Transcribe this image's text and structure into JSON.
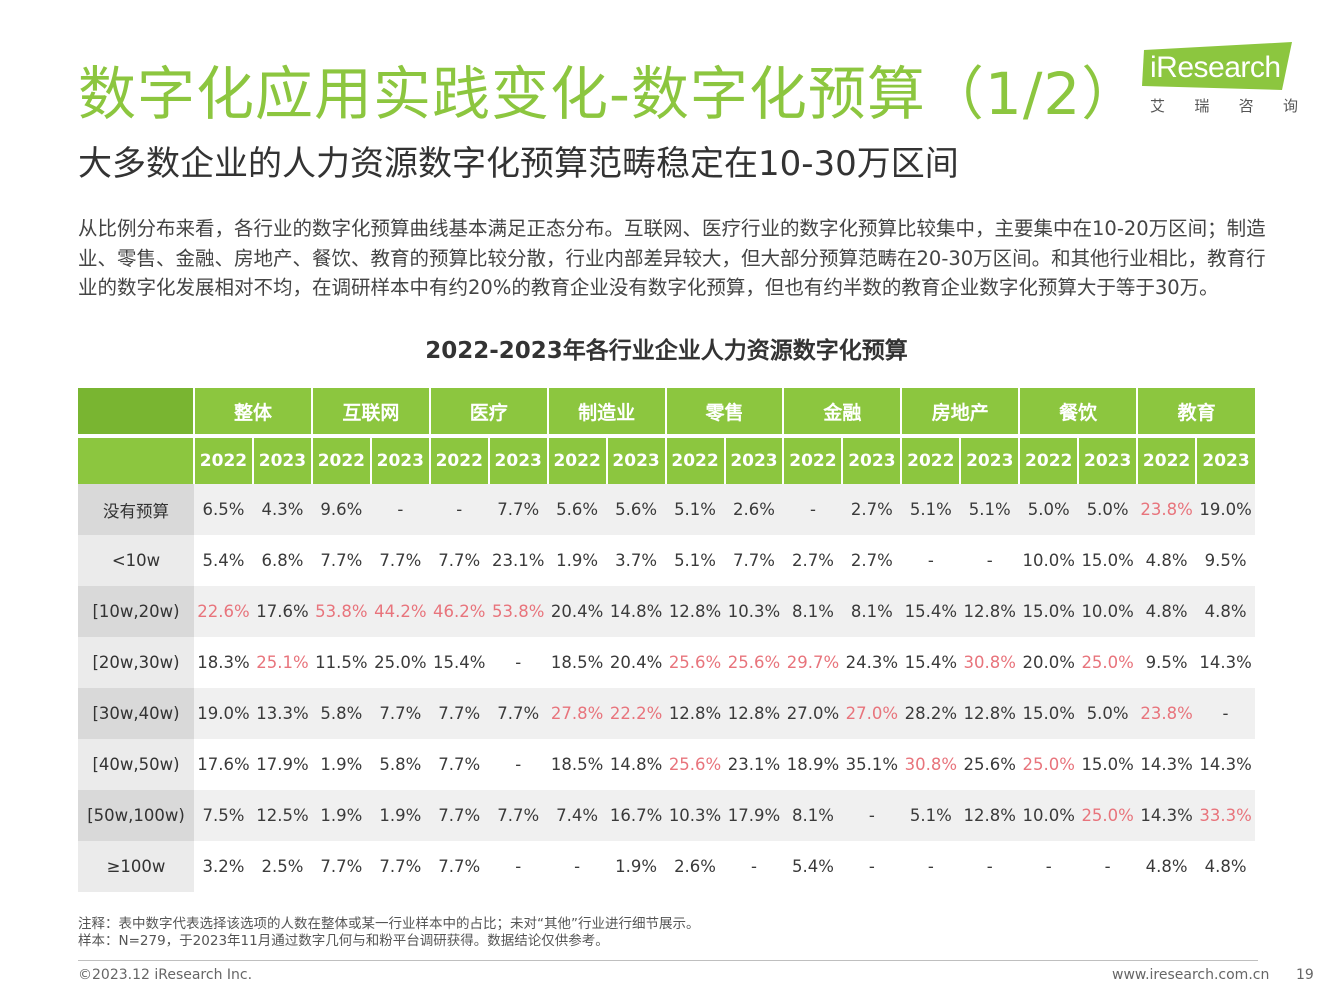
{
  "header": {
    "title": "数字化应用实践变化-数字化预算（1/2）",
    "subtitle": "大多数企业的人力资源数字化预算范畴稳定在10-30万区间"
  },
  "logo": {
    "brand": "iResearch",
    "brand_cn": [
      "艾",
      "瑞",
      "咨",
      "询"
    ],
    "color": "#8cc63f"
  },
  "intro": "从比例分布来看，各行业的数字化预算曲线基本满足正态分布。互联网、医疗行业的数字化预算比较集中，主要集中在10-20万区间；制造业、零售、金融、房地产、餐饮、教育的预算比较分散，行业内部差异较大，但大部分预算范畴在20-30万区间。和其他行业相比，教育行业的数字化发展相对不均，在调研样本中有约20%的教育企业没有数字化预算，但也有约半数的教育企业数字化预算大于等于30万。",
  "table": {
    "title": "2022-2023年各行业企业人力资源数字化预算",
    "industries": [
      "整体",
      "互联网",
      "医疗",
      "制造业",
      "零售",
      "金融",
      "房地产",
      "餐饮",
      "教育"
    ],
    "years": [
      "2022",
      "2023"
    ],
    "rows": [
      {
        "label": "没有预算",
        "cells": [
          {
            "v": "6.5%",
            "hl": false
          },
          {
            "v": "4.3%",
            "hl": false
          },
          {
            "v": "9.6%",
            "hl": false
          },
          {
            "v": "-",
            "hl": false
          },
          {
            "v": "-",
            "hl": false
          },
          {
            "v": "7.7%",
            "hl": false
          },
          {
            "v": "5.6%",
            "hl": false
          },
          {
            "v": "5.6%",
            "hl": false
          },
          {
            "v": "5.1%",
            "hl": false
          },
          {
            "v": "2.6%",
            "hl": false
          },
          {
            "v": "-",
            "hl": false
          },
          {
            "v": "2.7%",
            "hl": false
          },
          {
            "v": "5.1%",
            "hl": false
          },
          {
            "v": "5.1%",
            "hl": false
          },
          {
            "v": "5.0%",
            "hl": false
          },
          {
            "v": "5.0%",
            "hl": false
          },
          {
            "v": "23.8%",
            "hl": true
          },
          {
            "v": "19.0%",
            "hl": false
          }
        ]
      },
      {
        "label": "<10w",
        "cells": [
          {
            "v": "5.4%",
            "hl": false
          },
          {
            "v": "6.8%",
            "hl": false
          },
          {
            "v": "7.7%",
            "hl": false
          },
          {
            "v": "7.7%",
            "hl": false
          },
          {
            "v": "7.7%",
            "hl": false
          },
          {
            "v": "23.1%",
            "hl": false
          },
          {
            "v": "1.9%",
            "hl": false
          },
          {
            "v": "3.7%",
            "hl": false
          },
          {
            "v": "5.1%",
            "hl": false
          },
          {
            "v": "7.7%",
            "hl": false
          },
          {
            "v": "2.7%",
            "hl": false
          },
          {
            "v": "2.7%",
            "hl": false
          },
          {
            "v": "-",
            "hl": false
          },
          {
            "v": "-",
            "hl": false
          },
          {
            "v": "10.0%",
            "hl": false
          },
          {
            "v": "15.0%",
            "hl": false
          },
          {
            "v": "4.8%",
            "hl": false
          },
          {
            "v": "9.5%",
            "hl": false
          }
        ]
      },
      {
        "label": "[10w,20w)",
        "cells": [
          {
            "v": "22.6%",
            "hl": true
          },
          {
            "v": "17.6%",
            "hl": false
          },
          {
            "v": "53.8%",
            "hl": true
          },
          {
            "v": "44.2%",
            "hl": true
          },
          {
            "v": "46.2%",
            "hl": true
          },
          {
            "v": "53.8%",
            "hl": true
          },
          {
            "v": "20.4%",
            "hl": false
          },
          {
            "v": "14.8%",
            "hl": false
          },
          {
            "v": "12.8%",
            "hl": false
          },
          {
            "v": "10.3%",
            "hl": false
          },
          {
            "v": "8.1%",
            "hl": false
          },
          {
            "v": "8.1%",
            "hl": false
          },
          {
            "v": "15.4%",
            "hl": false
          },
          {
            "v": "12.8%",
            "hl": false
          },
          {
            "v": "15.0%",
            "hl": false
          },
          {
            "v": "10.0%",
            "hl": false
          },
          {
            "v": "4.8%",
            "hl": false
          },
          {
            "v": "4.8%",
            "hl": false
          }
        ]
      },
      {
        "label": "[20w,30w)",
        "cells": [
          {
            "v": "18.3%",
            "hl": false
          },
          {
            "v": "25.1%",
            "hl": true
          },
          {
            "v": "11.5%",
            "hl": false
          },
          {
            "v": "25.0%",
            "hl": false
          },
          {
            "v": "15.4%",
            "hl": false
          },
          {
            "v": "-",
            "hl": false
          },
          {
            "v": "18.5%",
            "hl": false
          },
          {
            "v": "20.4%",
            "hl": false
          },
          {
            "v": "25.6%",
            "hl": true
          },
          {
            "v": "25.6%",
            "hl": true
          },
          {
            "v": "29.7%",
            "hl": true
          },
          {
            "v": "24.3%",
            "hl": false
          },
          {
            "v": "15.4%",
            "hl": false
          },
          {
            "v": "30.8%",
            "hl": true
          },
          {
            "v": "20.0%",
            "hl": false
          },
          {
            "v": "25.0%",
            "hl": true
          },
          {
            "v": "9.5%",
            "hl": false
          },
          {
            "v": "14.3%",
            "hl": false
          }
        ]
      },
      {
        "label": "[30w,40w)",
        "cells": [
          {
            "v": "19.0%",
            "hl": false
          },
          {
            "v": "13.3%",
            "hl": false
          },
          {
            "v": "5.8%",
            "hl": false
          },
          {
            "v": "7.7%",
            "hl": false
          },
          {
            "v": "7.7%",
            "hl": false
          },
          {
            "v": "7.7%",
            "hl": false
          },
          {
            "v": "27.8%",
            "hl": true
          },
          {
            "v": "22.2%",
            "hl": true
          },
          {
            "v": "12.8%",
            "hl": false
          },
          {
            "v": "12.8%",
            "hl": false
          },
          {
            "v": "27.0%",
            "hl": false
          },
          {
            "v": "27.0%",
            "hl": true
          },
          {
            "v": "28.2%",
            "hl": false
          },
          {
            "v": "12.8%",
            "hl": false
          },
          {
            "v": "15.0%",
            "hl": false
          },
          {
            "v": "5.0%",
            "hl": false
          },
          {
            "v": "23.8%",
            "hl": true
          },
          {
            "v": "-",
            "hl": false
          }
        ]
      },
      {
        "label": "[40w,50w)",
        "cells": [
          {
            "v": "17.6%",
            "hl": false
          },
          {
            "v": "17.9%",
            "hl": false
          },
          {
            "v": "1.9%",
            "hl": false
          },
          {
            "v": "5.8%",
            "hl": false
          },
          {
            "v": "7.7%",
            "hl": false
          },
          {
            "v": "-",
            "hl": false
          },
          {
            "v": "18.5%",
            "hl": false
          },
          {
            "v": "14.8%",
            "hl": false
          },
          {
            "v": "25.6%",
            "hl": true
          },
          {
            "v": "23.1%",
            "hl": false
          },
          {
            "v": "18.9%",
            "hl": false
          },
          {
            "v": "35.1%",
            "hl": false
          },
          {
            "v": "30.8%",
            "hl": true
          },
          {
            "v": "25.6%",
            "hl": false
          },
          {
            "v": "25.0%",
            "hl": true
          },
          {
            "v": "15.0%",
            "hl": false
          },
          {
            "v": "14.3%",
            "hl": false
          },
          {
            "v": "14.3%",
            "hl": false
          }
        ]
      },
      {
        "label": "[50w,100w)",
        "cells": [
          {
            "v": "7.5%",
            "hl": false
          },
          {
            "v": "12.5%",
            "hl": false
          },
          {
            "v": "1.9%",
            "hl": false
          },
          {
            "v": "1.9%",
            "hl": false
          },
          {
            "v": "7.7%",
            "hl": false
          },
          {
            "v": "7.7%",
            "hl": false
          },
          {
            "v": "7.4%",
            "hl": false
          },
          {
            "v": "16.7%",
            "hl": false
          },
          {
            "v": "10.3%",
            "hl": false
          },
          {
            "v": "17.9%",
            "hl": false
          },
          {
            "v": "8.1%",
            "hl": false
          },
          {
            "v": "-",
            "hl": false
          },
          {
            "v": "5.1%",
            "hl": false
          },
          {
            "v": "12.8%",
            "hl": false
          },
          {
            "v": "10.0%",
            "hl": false
          },
          {
            "v": "25.0%",
            "hl": true
          },
          {
            "v": "14.3%",
            "hl": false
          },
          {
            "v": "33.3%",
            "hl": true
          }
        ]
      },
      {
        "label": "≥100w",
        "cells": [
          {
            "v": "3.2%",
            "hl": false
          },
          {
            "v": "2.5%",
            "hl": false
          },
          {
            "v": "7.7%",
            "hl": false
          },
          {
            "v": "7.7%",
            "hl": false
          },
          {
            "v": "7.7%",
            "hl": false
          },
          {
            "v": "-",
            "hl": false
          },
          {
            "v": "-",
            "hl": false
          },
          {
            "v": "1.9%",
            "hl": false
          },
          {
            "v": "2.6%",
            "hl": false
          },
          {
            "v": "-",
            "hl": false
          },
          {
            "v": "5.4%",
            "hl": false
          },
          {
            "v": "-",
            "hl": false
          },
          {
            "v": "-",
            "hl": false
          },
          {
            "v": "-",
            "hl": false
          },
          {
            "v": "-",
            "hl": false
          },
          {
            "v": "-",
            "hl": false
          },
          {
            "v": "4.8%",
            "hl": false
          },
          {
            "v": "4.8%",
            "hl": false
          }
        ]
      }
    ]
  },
  "notes": {
    "note": "注释：表中数字代表选择该选项的人数在整体或某一行业样本中的占比；未对“其他”行业进行细节展示。",
    "sample": "样本：N=279，于2023年11月通过数字几何与和粉平台调研获得。数据结论仅供参考。"
  },
  "footer": {
    "copyright": "©2023.12 iResearch Inc.",
    "website": "www.iresearch.com.cn",
    "page": "19"
  },
  "colors": {
    "accent_green": "#8cc63f",
    "highlight_red": "#e8747c",
    "header_text": "#ffffff"
  }
}
